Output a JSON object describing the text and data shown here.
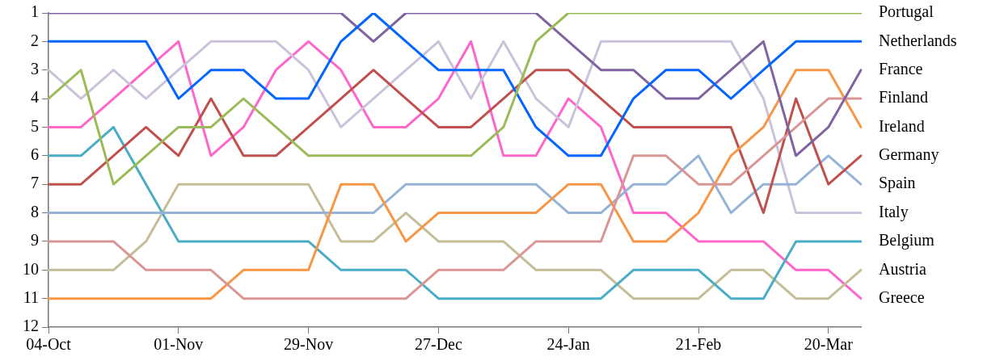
{
  "chart_data": {
    "type": "line",
    "categories": [
      "04-Oct",
      null,
      null,
      null,
      "01-Nov",
      null,
      null,
      null,
      "29-Nov",
      null,
      null,
      null,
      "27-Dec",
      null,
      null,
      null,
      "24-Jan",
      null,
      null,
      null,
      "21-Feb",
      null,
      null,
      null,
      "20-Mar",
      null
    ],
    "ylim": [
      12,
      1
    ],
    "yticks": [
      1,
      2,
      3,
      4,
      5,
      6,
      7,
      8,
      9,
      10,
      11,
      12
    ],
    "grid": false,
    "legend": false,
    "marker": "none",
    "line_style": "solid",
    "series": [
      {
        "name": "Portugal",
        "color": "#9bbb59",
        "values": [
          4,
          3,
          7,
          6,
          5,
          5,
          4,
          5,
          6,
          6,
          6,
          6,
          6,
          6,
          5,
          2,
          1,
          1,
          1,
          1,
          1,
          1,
          1,
          1,
          1,
          1
        ]
      },
      {
        "name": "Netherlands",
        "color": "#0066ff",
        "values": [
          2,
          2,
          2,
          2,
          4,
          3,
          3,
          4,
          4,
          2,
          1,
          2,
          3,
          3,
          3,
          5,
          6,
          6,
          4,
          3,
          3,
          4,
          3,
          2,
          2,
          2
        ]
      },
      {
        "name": "France",
        "color": "#8064a2",
        "values": [
          1,
          1,
          1,
          1,
          1,
          1,
          1,
          1,
          1,
          1,
          2,
          1,
          1,
          1,
          1,
          1,
          2,
          3,
          3,
          4,
          4,
          3,
          2,
          6,
          5,
          3
        ]
      },
      {
        "name": "Finland",
        "color": "#d99694",
        "values": [
          9,
          9,
          9,
          10,
          10,
          10,
          11,
          11,
          11,
          11,
          11,
          11,
          10,
          10,
          10,
          9,
          9,
          9,
          6,
          6,
          7,
          7,
          6,
          5,
          4,
          4
        ]
      },
      {
        "name": "Ireland",
        "color": "#f79646",
        "values": [
          11,
          11,
          11,
          11,
          11,
          11,
          10,
          10,
          10,
          7,
          7,
          9,
          8,
          8,
          8,
          8,
          7,
          7,
          9,
          9,
          8,
          6,
          5,
          3,
          3,
          5
        ]
      },
      {
        "name": "Germany",
        "color": "#c0504d",
        "values": [
          7,
          7,
          6,
          5,
          6,
          4,
          6,
          6,
          5,
          4,
          3,
          4,
          5,
          5,
          4,
          3,
          3,
          4,
          5,
          5,
          5,
          5,
          8,
          4,
          7,
          6
        ]
      },
      {
        "name": "Spain",
        "color": "#95b3d7",
        "values": [
          8,
          8,
          8,
          8,
          8,
          8,
          8,
          8,
          8,
          8,
          8,
          7,
          7,
          7,
          7,
          7,
          8,
          8,
          7,
          7,
          6,
          8,
          7,
          7,
          6,
          7
        ]
      },
      {
        "name": "Italy",
        "color": "#ccc1da",
        "values": [
          3,
          4,
          3,
          4,
          3,
          2,
          2,
          2,
          3,
          5,
          4,
          3,
          2,
          4,
          2,
          4,
          5,
          2,
          2,
          2,
          2,
          2,
          4,
          8,
          8,
          8
        ]
      },
      {
        "name": "Belgium",
        "color": "#4bacc6",
        "values": [
          6,
          6,
          5,
          7,
          9,
          9,
          9,
          9,
          9,
          10,
          10,
          10,
          11,
          11,
          11,
          11,
          11,
          11,
          10,
          10,
          10,
          11,
          11,
          9,
          9,
          9
        ]
      },
      {
        "name": "Austria",
        "color": "#c4bd97",
        "values": [
          10,
          10,
          10,
          9,
          7,
          7,
          7,
          7,
          7,
          9,
          9,
          8,
          9,
          9,
          9,
          10,
          10,
          10,
          11,
          11,
          11,
          10,
          10,
          11,
          11,
          10
        ]
      },
      {
        "name": "Greece",
        "color": "#ff66cc",
        "values": [
          5,
          5,
          4,
          3,
          2,
          6,
          5,
          3,
          2,
          3,
          5,
          5,
          4,
          2,
          6,
          6,
          4,
          5,
          8,
          8,
          9,
          9,
          9,
          10,
          10,
          11
        ]
      }
    ]
  }
}
